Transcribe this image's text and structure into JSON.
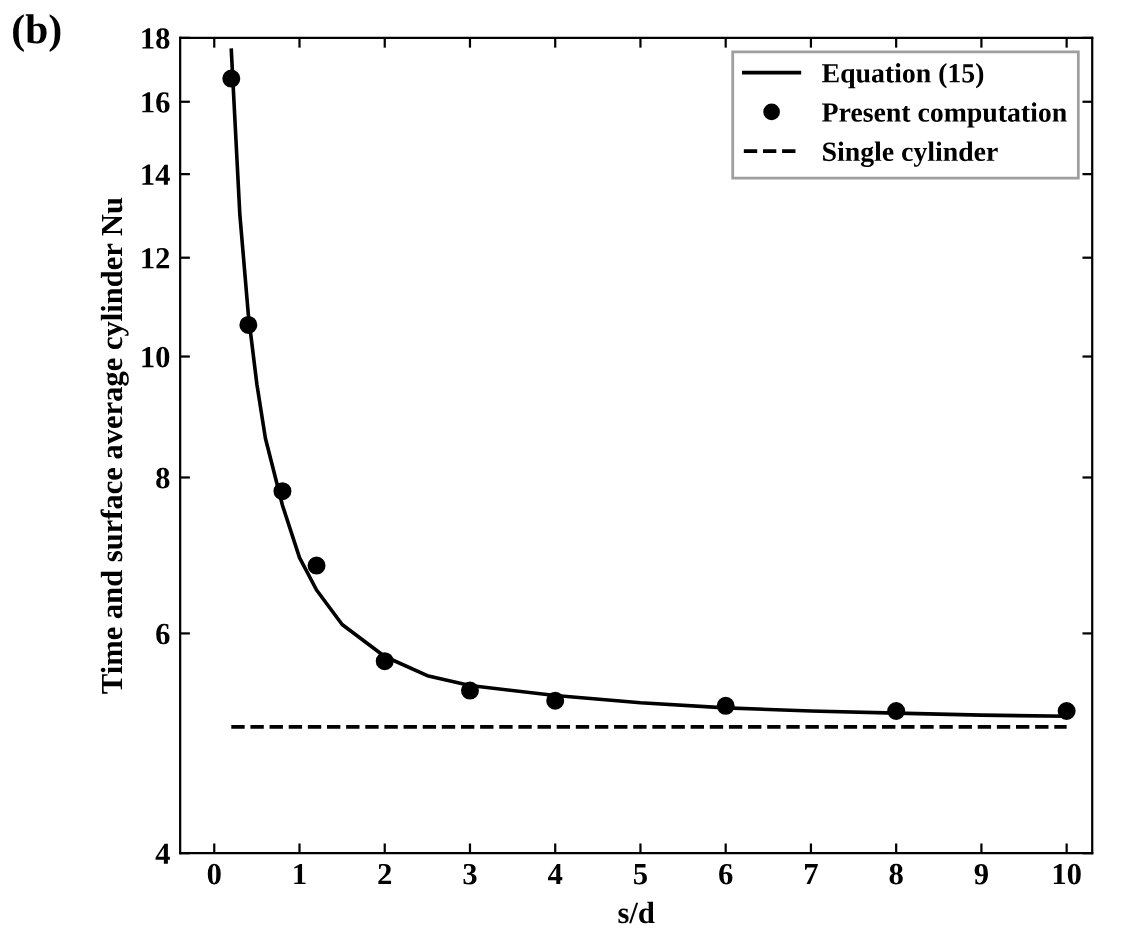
{
  "chart_data": {
    "type": "scatter",
    "xlabel": "s/d",
    "ylabel": "Time and surface average cylinder Nu",
    "annotations": [
      "(b)"
    ],
    "xlim": [
      -0.4,
      10.3
    ],
    "xticks": [
      0,
      1,
      2,
      3,
      4,
      5,
      6,
      7,
      8,
      9,
      10
    ],
    "ylim": [
      4,
      18
    ],
    "yticks": [
      4,
      6,
      8,
      10,
      12,
      14,
      16,
      18
    ],
    "log": "y",
    "grid": false,
    "legend": "top right",
    "series": [
      {
        "name": "Equation (15)",
        "type": "line",
        "line_style": "solid",
        "marker": "none",
        "color": "#000000",
        "x": [
          0.2,
          0.3,
          0.4,
          0.5,
          0.6,
          0.8,
          1.0,
          1.2,
          1.5,
          2,
          2.5,
          3,
          4,
          5,
          6,
          7,
          8,
          9,
          10
        ],
        "values": [
          17.6,
          13.0,
          10.8,
          9.5,
          8.6,
          7.6,
          6.9,
          6.5,
          6.1,
          5.75,
          5.55,
          5.45,
          5.35,
          5.28,
          5.23,
          5.2,
          5.18,
          5.16,
          5.15
        ]
      },
      {
        "name": "Present computation",
        "marker": "circle",
        "color": "#000000",
        "x": [
          0.2,
          0.4,
          0.8,
          1.2,
          2,
          3,
          4,
          6,
          8,
          10
        ],
        "values": [
          16.7,
          10.6,
          7.8,
          6.8,
          5.7,
          5.4,
          5.3,
          5.25,
          5.2,
          5.2
        ]
      },
      {
        "name": "Single cylinder",
        "type": "line",
        "line_style": "dashed",
        "marker": "none",
        "color": "#000000",
        "x": [
          0.2,
          10
        ],
        "values": [
          5.05,
          5.05
        ]
      }
    ]
  }
}
